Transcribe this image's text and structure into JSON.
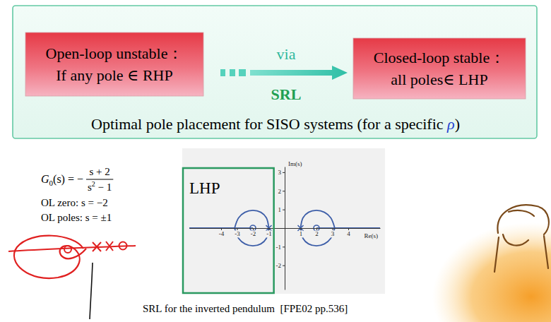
{
  "slide": {
    "open_loop_box": {
      "lines": [
        "Open-loop unstable：",
        "If any pole ∈ RHP"
      ]
    },
    "arrow": {
      "above": "via",
      "below": "SRL"
    },
    "closed_loop_box": {
      "lines": [
        "Closed-loop stable：",
        "all poles∈ LHP"
      ]
    },
    "summary": [
      "Optimal pole placement for SISO systems (for a specific ",
      "ρ",
      ")"
    ]
  },
  "formulas": {
    "transfer_function": {
      "symbol": "G",
      "subscript": "0",
      "after": "(s) = −",
      "numerator": "s + 2",
      "denominator": {
        "base": "s",
        "superscript": "2",
        "rest": " − 1"
      }
    },
    "lines": [
      "OL zero: s = −2",
      "OL poles: s = ±1"
    ]
  },
  "chart_data": {
    "type": "line",
    "xlabel": "Re(s)",
    "ylabel": "Im(s)",
    "annotations": [
      "LHP"
    ],
    "xlim": [
      -6,
      6
    ],
    "ylim": [
      -3.3,
      3.3
    ],
    "xticks": [
      -4,
      -3,
      -2,
      -1,
      1,
      2,
      3,
      4
    ],
    "yticks": [
      -2,
      -1,
      1,
      2,
      3
    ],
    "series": [
      {
        "type": "line",
        "color": "#3d5ea8",
        "x": [
          -1,
          -1.15,
          -1.5,
          -2,
          -2.5,
          -2.9,
          -3.15
        ],
        "values": [
          0,
          0.55,
          0.85,
          0.95,
          0.85,
          0.55,
          0
        ]
      },
      {
        "type": "line",
        "color": "#3d5ea8",
        "x": [
          -1,
          -1.15,
          -1.5,
          -2,
          -2.5,
          -2.9,
          -3.15
        ],
        "values": [
          0,
          -0.55,
          -0.85,
          -0.95,
          -0.85,
          -0.55,
          0
        ]
      },
      {
        "type": "line",
        "color": "#3d5ea8",
        "x": [
          1,
          1.15,
          1.5,
          2,
          2.5,
          2.9,
          3.15
        ],
        "values": [
          0,
          0.55,
          0.85,
          0.95,
          0.85,
          0.55,
          0
        ]
      },
      {
        "type": "line",
        "color": "#3d5ea8",
        "x": [
          1,
          1.15,
          1.5,
          2,
          2.5,
          2.9,
          3.15
        ],
        "values": [
          0,
          -0.55,
          -0.85,
          -0.95,
          -0.85,
          -0.55,
          0
        ]
      },
      {
        "type": "line",
        "color": "#3d5ea8",
        "x": [
          -3.15,
          -2
        ],
        "values": [
          0,
          0
        ]
      },
      {
        "type": "line",
        "color": "#3d5ea8",
        "x": [
          -3.15,
          -6
        ],
        "values": [
          0,
          0
        ]
      },
      {
        "type": "line",
        "color": "#3d5ea8",
        "x": [
          3.15,
          2
        ],
        "values": [
          0,
          0
        ]
      },
      {
        "type": "line",
        "color": "#3d5ea8",
        "x": [
          3.15,
          6
        ],
        "values": [
          0,
          0
        ]
      },
      {
        "type": "scatter",
        "marker": "x",
        "color": "#3d5ea8",
        "x": [
          -1,
          1
        ],
        "values": [
          0,
          0
        ]
      },
      {
        "type": "scatter",
        "marker": "circle",
        "color": "#3d5ea8",
        "x": [
          -2,
          2
        ],
        "values": [
          0,
          0
        ]
      }
    ]
  },
  "caption": "SRL for the inverted pendulum  [FPE02 pp.536]"
}
